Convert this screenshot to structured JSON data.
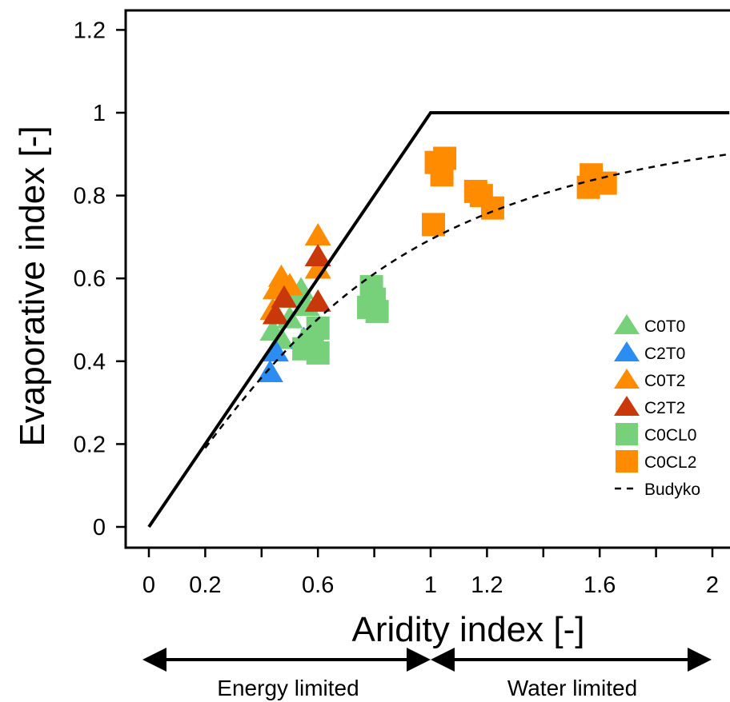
{
  "chart_data": {
    "type": "scatter",
    "xlabel": "Aridity index [-]",
    "ylabel": "Evaporative index [-]",
    "xlim": [
      -0.08,
      2.06
    ],
    "ylim": [
      -0.05,
      1.25
    ],
    "xticks": [
      0,
      0.2,
      0.4,
      0.6,
      0.8,
      1,
      1.2,
      1.4,
      1.6,
      1.8,
      2
    ],
    "xtick_labels": [
      "0",
      "0.2",
      "",
      "0.6",
      "",
      "1",
      "1.2",
      "",
      "1.6",
      "",
      "2"
    ],
    "yticks": [
      0,
      0.2,
      0.4,
      0.6,
      0.8,
      1,
      1.2
    ],
    "ytick_labels": [
      "0",
      "0.2",
      "0.4",
      "0.6",
      "0.8",
      "1",
      "1.2"
    ],
    "legend_position": "bottom-right",
    "grid": false,
    "series": [
      {
        "name": "C0T0",
        "marker": "triangle",
        "color": "#77d07a",
        "points": [
          [
            0.44,
            0.47
          ],
          [
            0.47,
            0.45
          ],
          [
            0.5,
            0.5
          ],
          [
            0.52,
            0.55
          ],
          [
            0.54,
            0.57
          ],
          [
            0.56,
            0.53
          ]
        ]
      },
      {
        "name": "C2T0",
        "marker": "triangle",
        "color": "#2b8cf2",
        "points": [
          [
            0.43,
            0.37
          ],
          [
            0.45,
            0.42
          ],
          [
            0.55,
            0.45
          ],
          [
            0.56,
            0.43
          ]
        ]
      },
      {
        "name": "C0T2",
        "marker": "triangle",
        "color": "#ff8c00",
        "points": [
          [
            0.44,
            0.52
          ],
          [
            0.45,
            0.57
          ],
          [
            0.47,
            0.6
          ],
          [
            0.5,
            0.58
          ],
          [
            0.6,
            0.7
          ],
          [
            0.6,
            0.62
          ]
        ]
      },
      {
        "name": "C2T2",
        "marker": "triangle",
        "color": "#c8380a",
        "points": [
          [
            0.45,
            0.51
          ],
          [
            0.48,
            0.55
          ],
          [
            0.6,
            0.65
          ],
          [
            0.6,
            0.54
          ]
        ]
      },
      {
        "name": "C0CL0",
        "marker": "square",
        "color": "#77d07a",
        "points": [
          [
            0.55,
            0.43
          ],
          [
            0.58,
            0.45
          ],
          [
            0.6,
            0.42
          ],
          [
            0.6,
            0.48
          ],
          [
            0.78,
            0.53
          ],
          [
            0.79,
            0.58
          ],
          [
            0.8,
            0.55
          ],
          [
            0.81,
            0.52
          ]
        ]
      },
      {
        "name": "C0CL2",
        "marker": "square",
        "color": "#ff8c00",
        "points": [
          [
            1.01,
            0.73
          ],
          [
            1.02,
            0.88
          ],
          [
            1.04,
            0.85
          ],
          [
            1.05,
            0.89
          ],
          [
            1.16,
            0.81
          ],
          [
            1.18,
            0.8
          ],
          [
            1.22,
            0.77
          ],
          [
            1.56,
            0.82
          ],
          [
            1.57,
            0.85
          ],
          [
            1.62,
            0.83
          ]
        ]
      }
    ],
    "lines": [
      {
        "name": "",
        "style": "solid",
        "color": "#000000",
        "points": [
          [
            0,
            0
          ],
          [
            1,
            1
          ],
          [
            2.06,
            1
          ]
        ]
      },
      {
        "name": "Budyko",
        "style": "dashed",
        "color": "#000000",
        "function": "budyko"
      }
    ],
    "annotations": {
      "energy_limited": "Energy limited",
      "water_limited": "Water limited"
    }
  }
}
